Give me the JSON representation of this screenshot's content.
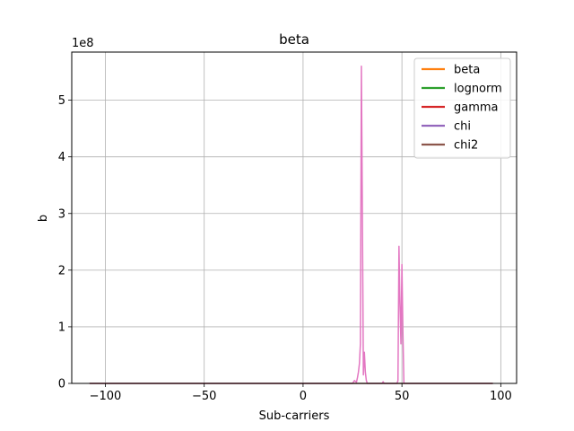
{
  "chart_data": {
    "type": "line",
    "title": "beta",
    "xlabel": "Sub-carriers",
    "ylabel": "b",
    "y_scale_label": "1e8",
    "xlim": [
      -117,
      108
    ],
    "ylim": [
      0,
      5.85
    ],
    "x_ticks": [
      -100,
      -50,
      0,
      50,
      100
    ],
    "x_tick_labels": [
      "−100",
      "−50",
      "0",
      "50",
      "100"
    ],
    "y_ticks": [
      0,
      1,
      2,
      3,
      4,
      5
    ],
    "y_tick_labels": [
      "0",
      "1",
      "2",
      "3",
      "4",
      "5"
    ],
    "grid": true,
    "legend_position": "top-right",
    "legend": [
      {
        "name": "beta",
        "color": "#ff7f0e"
      },
      {
        "name": "lognorm",
        "color": "#2ca02c"
      },
      {
        "name": "gamma",
        "color": "#d62728"
      },
      {
        "name": "chi",
        "color": "#9467bd"
      },
      {
        "name": "chi2",
        "color": "#8c564b"
      }
    ],
    "series": [
      {
        "color": "#e377c2",
        "x": [
          -108,
          20,
          25,
          26,
          27,
          27.5,
          28,
          28.5,
          29,
          29.5,
          30,
          30.5,
          31,
          31.5,
          32,
          32.5,
          33,
          34,
          40,
          40.5,
          41,
          42,
          47,
          47.5,
          48,
          48.5,
          49,
          49.5,
          50,
          50.5,
          51,
          52,
          96
        ],
        "y": [
          0,
          0,
          0,
          0.05,
          0.02,
          0.1,
          0.2,
          0.35,
          0.7,
          5.6,
          3.0,
          0.15,
          0.55,
          0.2,
          0.05,
          0,
          0,
          0,
          0,
          0.03,
          0,
          0,
          0,
          0,
          0.05,
          2.42,
          1.4,
          0.7,
          2.1,
          0.9,
          0,
          0,
          0
        ]
      },
      {
        "color": "#8c564b",
        "x": [
          -108,
          96
        ],
        "y": [
          0,
          0
        ]
      }
    ]
  }
}
